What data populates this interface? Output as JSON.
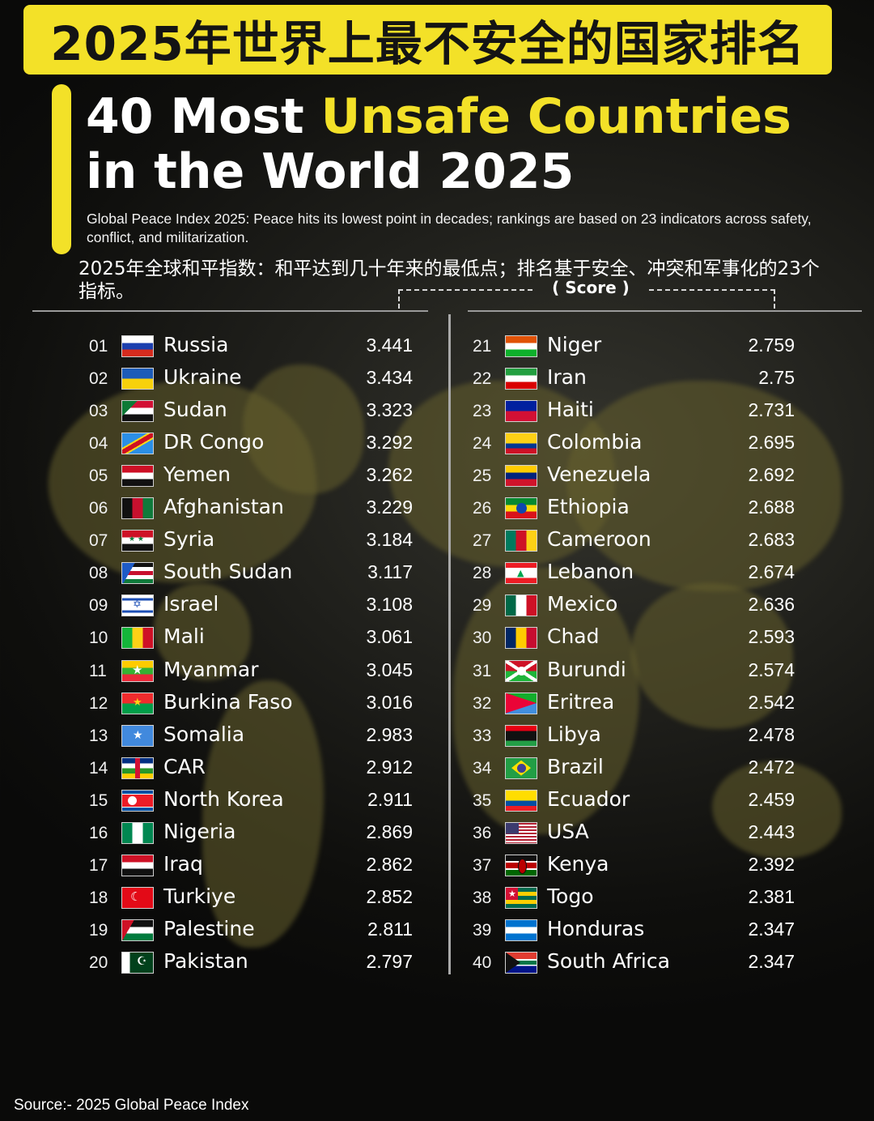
{
  "banner": {
    "title": "2025年世界上最不安全的国家排名"
  },
  "headline": {
    "line1_prefix": "40 Most ",
    "line1_highlight": "Unsafe Countries",
    "line2": "in the World 2025"
  },
  "subtitle": "Global Peace Index 2025: Peace hits its lowest point in decades; rankings are based on 23 indicators across safety, conflict, and militarization.",
  "subtitle_cn": "2025年全球和平指数：和平达到几十年来的最低点；排名基于安全、冲突和军事化的23个指标。",
  "score_header": "( Score )",
  "source": "Source:- 2025 Global Peace Index",
  "colors": {
    "accent": "#f3e128",
    "background": "#1a1a17",
    "map": "#66602d"
  },
  "rankings": [
    {
      "rank": "01",
      "country": "Russia",
      "score": "3.441",
      "flag": "russia-flag"
    },
    {
      "rank": "02",
      "country": "Ukraine",
      "score": "3.434",
      "flag": "ukraine-flag"
    },
    {
      "rank": "03",
      "country": "Sudan",
      "score": "3.323",
      "flag": "sudan-flag"
    },
    {
      "rank": "04",
      "country": "DR Congo",
      "score": "3.292",
      "flag": "dr-congo-flag"
    },
    {
      "rank": "05",
      "country": "Yemen",
      "score": "3.262",
      "flag": "yemen-flag"
    },
    {
      "rank": "06",
      "country": "Afghanistan",
      "score": "3.229",
      "flag": "afghanistan-flag"
    },
    {
      "rank": "07",
      "country": "Syria",
      "score": "3.184",
      "flag": "syria-flag"
    },
    {
      "rank": "08",
      "country": "South Sudan",
      "score": "3.117",
      "flag": "south-sudan-flag"
    },
    {
      "rank": "09",
      "country": "Israel",
      "score": "3.108",
      "flag": "israel-flag"
    },
    {
      "rank": "10",
      "country": "Mali",
      "score": "3.061",
      "flag": "mali-flag"
    },
    {
      "rank": "11",
      "country": "Myanmar",
      "score": "3.045",
      "flag": "myanmar-flag"
    },
    {
      "rank": "12",
      "country": "Burkina Faso",
      "score": "3.016",
      "flag": "burkina-faso-flag"
    },
    {
      "rank": "13",
      "country": "Somalia",
      "score": "2.983",
      "flag": "somalia-flag"
    },
    {
      "rank": "14",
      "country": "CAR",
      "score": "2.912",
      "flag": "car-flag"
    },
    {
      "rank": "15",
      "country": "North Korea",
      "score": "2.911",
      "flag": "north-korea-flag"
    },
    {
      "rank": "16",
      "country": "Nigeria",
      "score": "2.869",
      "flag": "nigeria-flag"
    },
    {
      "rank": "17",
      "country": "Iraq",
      "score": "2.862",
      "flag": "iraq-flag"
    },
    {
      "rank": "18",
      "country": "Turkiye",
      "score": "2.852",
      "flag": "turkiye-flag"
    },
    {
      "rank": "19",
      "country": "Palestine",
      "score": "2.811",
      "flag": "palestine-flag"
    },
    {
      "rank": "20",
      "country": "Pakistan",
      "score": "2.797",
      "flag": "pakistan-flag"
    },
    {
      "rank": "21",
      "country": "Niger",
      "score": "2.759",
      "flag": "niger-flag"
    },
    {
      "rank": "22",
      "country": "Iran",
      "score": "2.75",
      "flag": "iran-flag"
    },
    {
      "rank": "23",
      "country": "Haiti",
      "score": "2.731",
      "flag": "haiti-flag"
    },
    {
      "rank": "24",
      "country": "Colombia",
      "score": "2.695",
      "flag": "colombia-flag"
    },
    {
      "rank": "25",
      "country": "Venezuela",
      "score": "2.692",
      "flag": "venezuela-flag"
    },
    {
      "rank": "26",
      "country": "Ethiopia",
      "score": "2.688",
      "flag": "ethiopia-flag"
    },
    {
      "rank": "27",
      "country": "Cameroon",
      "score": "2.683",
      "flag": "cameroon-flag"
    },
    {
      "rank": "28",
      "country": "Lebanon",
      "score": "2.674",
      "flag": "lebanon-flag"
    },
    {
      "rank": "29",
      "country": "Mexico",
      "score": "2.636",
      "flag": "mexico-flag"
    },
    {
      "rank": "30",
      "country": "Chad",
      "score": "2.593",
      "flag": "chad-flag"
    },
    {
      "rank": "31",
      "country": "Burundi",
      "score": "2.574",
      "flag": "burundi-flag"
    },
    {
      "rank": "32",
      "country": "Eritrea",
      "score": "2.542",
      "flag": "eritrea-flag"
    },
    {
      "rank": "33",
      "country": "Libya",
      "score": "2.478",
      "flag": "libya-flag"
    },
    {
      "rank": "34",
      "country": "Brazil",
      "score": "2.472",
      "flag": "brazil-flag"
    },
    {
      "rank": "35",
      "country": "Ecuador",
      "score": "2.459",
      "flag": "ecuador-flag"
    },
    {
      "rank": "36",
      "country": "USA",
      "score": "2.443",
      "flag": "usa-flag"
    },
    {
      "rank": "37",
      "country": "Kenya",
      "score": "2.392",
      "flag": "kenya-flag"
    },
    {
      "rank": "38",
      "country": "Togo",
      "score": "2.381",
      "flag": "togo-flag"
    },
    {
      "rank": "39",
      "country": "Honduras",
      "score": "2.347",
      "flag": "honduras-flag"
    },
    {
      "rank": "40",
      "country": "South Africa",
      "score": "2.347",
      "flag": "south-africa-flag"
    }
  ]
}
